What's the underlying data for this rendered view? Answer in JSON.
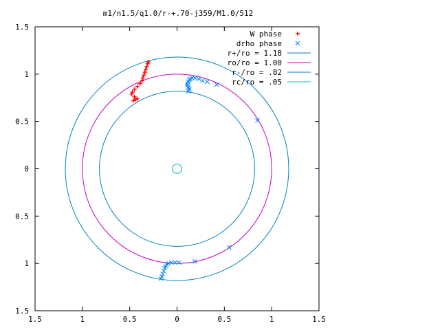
{
  "chart_data": {
    "type": "scatter",
    "title": "m1/n1.5/q1.0/r-+.70-j359/M1.0/512",
    "xlabel": "",
    "ylabel": "",
    "xlim": [
      -1.5,
      1.5
    ],
    "ylim": [
      -1.5,
      1.5
    ],
    "grid": false,
    "legend_position": "top-right",
    "x_tick_labels": [
      "1.5",
      "1",
      "0.5",
      "0",
      "0.5",
      "1",
      "1.5"
    ],
    "y_tick_labels": [
      "1.5",
      "1",
      "0.5",
      "0",
      "0.5",
      "1",
      "1.5"
    ],
    "series": [
      {
        "name": "W phase",
        "marker": "+",
        "color": "#ff0000",
        "points": [
          [
            -0.46,
            0.72
          ],
          [
            -0.44,
            0.73
          ],
          [
            -0.42,
            0.74
          ],
          [
            -0.45,
            0.76
          ],
          [
            -0.48,
            0.79
          ],
          [
            -0.47,
            0.81
          ],
          [
            -0.45,
            0.84
          ],
          [
            -0.42,
            0.87
          ],
          [
            -0.39,
            0.9
          ],
          [
            -0.37,
            0.93
          ],
          [
            -0.36,
            0.96
          ],
          [
            -0.35,
            0.99
          ],
          [
            -0.34,
            1.02
          ],
          [
            -0.33,
            1.05
          ],
          [
            -0.32,
            1.08
          ],
          [
            -0.31,
            1.11
          ],
          [
            -0.3,
            1.13
          ]
        ]
      },
      {
        "name": "drho phase",
        "marker": "x",
        "color": "#0080ff",
        "points": [
          [
            0.12,
            0.82
          ],
          [
            0.13,
            0.84
          ],
          [
            0.12,
            0.86
          ],
          [
            0.11,
            0.88
          ],
          [
            0.11,
            0.9
          ],
          [
            0.12,
            0.92
          ],
          [
            0.13,
            0.94
          ],
          [
            0.14,
            0.95
          ],
          [
            0.16,
            0.96
          ],
          [
            0.19,
            0.96
          ],
          [
            0.23,
            0.95
          ],
          [
            0.27,
            0.93
          ],
          [
            0.32,
            0.92
          ],
          [
            0.42,
            0.89
          ],
          [
            0.85,
            0.51
          ],
          [
            0.55,
            -0.83
          ],
          [
            0.19,
            -0.98
          ],
          [
            0.02,
            -0.99
          ],
          [
            -0.02,
            -0.99
          ],
          [
            -0.06,
            -0.99
          ],
          [
            -0.09,
            -1.0
          ],
          [
            -0.11,
            -1.01
          ],
          [
            -0.12,
            -1.03
          ],
          [
            -0.13,
            -1.05
          ],
          [
            -0.14,
            -1.08
          ],
          [
            -0.15,
            -1.11
          ],
          [
            -0.16,
            -1.14
          ],
          [
            -0.17,
            -1.16
          ]
        ]
      }
    ],
    "circles": [
      {
        "name": "r+/ro = 1.18",
        "radius": 1.18,
        "color": "#0080c0"
      },
      {
        "name": "ro/ro = 1.00",
        "radius": 1.0,
        "color": "#c000c0"
      },
      {
        "name": "r-/ro = .82",
        "radius": 0.82,
        "color": "#0080c0"
      },
      {
        "name": "rc/ro = .05",
        "radius": 0.05,
        "color": "#00c0c0"
      }
    ]
  }
}
